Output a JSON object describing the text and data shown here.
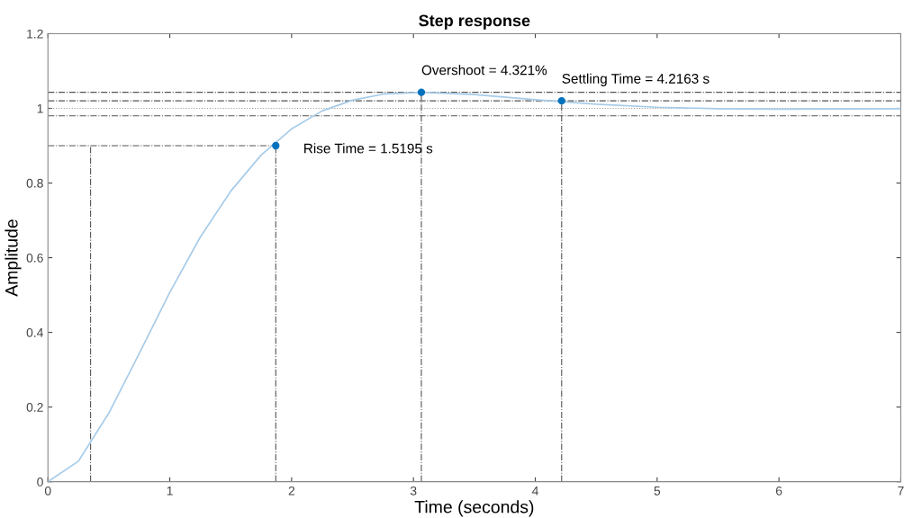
{
  "chart_data": {
    "type": "line",
    "title": "Step response",
    "xlabel": "Time (seconds)",
    "ylabel": "Amplitude",
    "x": [
      0,
      0.25,
      0.5,
      0.75,
      1.0,
      1.25,
      1.5,
      1.75,
      2.0,
      2.25,
      2.5,
      2.75,
      3.065,
      3.5,
      4.0,
      4.5,
      5.0,
      5.5,
      6.0,
      7.0
    ],
    "series": [
      {
        "color": "#a6cbe8",
        "values": [
          0,
          0.055,
          0.184,
          0.344,
          0.507,
          0.655,
          0.778,
          0.875,
          0.945,
          0.993,
          1.022,
          1.038,
          1.043,
          1.037,
          1.023,
          1.011,
          1.003,
          0.999,
          0.998,
          0.999
        ]
      }
    ],
    "xlim": [
      0,
      7
    ],
    "ylim": [
      0,
      1.2
    ],
    "xticks": [
      0,
      1,
      2,
      3,
      4,
      5,
      6,
      7
    ],
    "yticks": [
      0,
      0.2,
      0.4,
      0.6,
      0.8,
      1,
      1.2
    ],
    "grid": false,
    "legend": false,
    "marker": "none",
    "line_style": "solid",
    "annotations": [
      {
        "text": "Rise Time = 1.5195 s",
        "x": 1.87,
        "y": 0.9
      },
      {
        "text": "Overshoot = 4.321%",
        "x": 3.065,
        "y": 1.043
      },
      {
        "text": "Settling Time = 4.2163 s",
        "x": 4.2163,
        "y": 1.02
      }
    ],
    "ref_lines": [
      {
        "axis": "y",
        "value": 1.043,
        "line_style": "dashdot",
        "color": "#555555"
      },
      {
        "axis": "y",
        "value": 1.02,
        "line_style": "dashdot",
        "color": "#555555"
      },
      {
        "axis": "y",
        "value": 0.98,
        "line_style": "dashdot",
        "color": "#555555"
      },
      {
        "axis": "y",
        "value": 1,
        "line_style": "dotted",
        "color": "#999999"
      },
      {
        "axis": "y",
        "value": 0.9,
        "line_style": "dashdot",
        "color": "#555555"
      },
      {
        "axis": "x",
        "value": 0.35,
        "line_style": "dashdot",
        "color": "#555555"
      },
      {
        "axis": "x",
        "value": 1.87,
        "line_style": "dashdot",
        "color": "#555555"
      },
      {
        "axis": "x",
        "value": 3.065,
        "line_style": "dashdot",
        "color": "#555555"
      },
      {
        "axis": "x",
        "value": 4.2163,
        "line_style": "dashdot",
        "color": "#555555"
      }
    ]
  }
}
